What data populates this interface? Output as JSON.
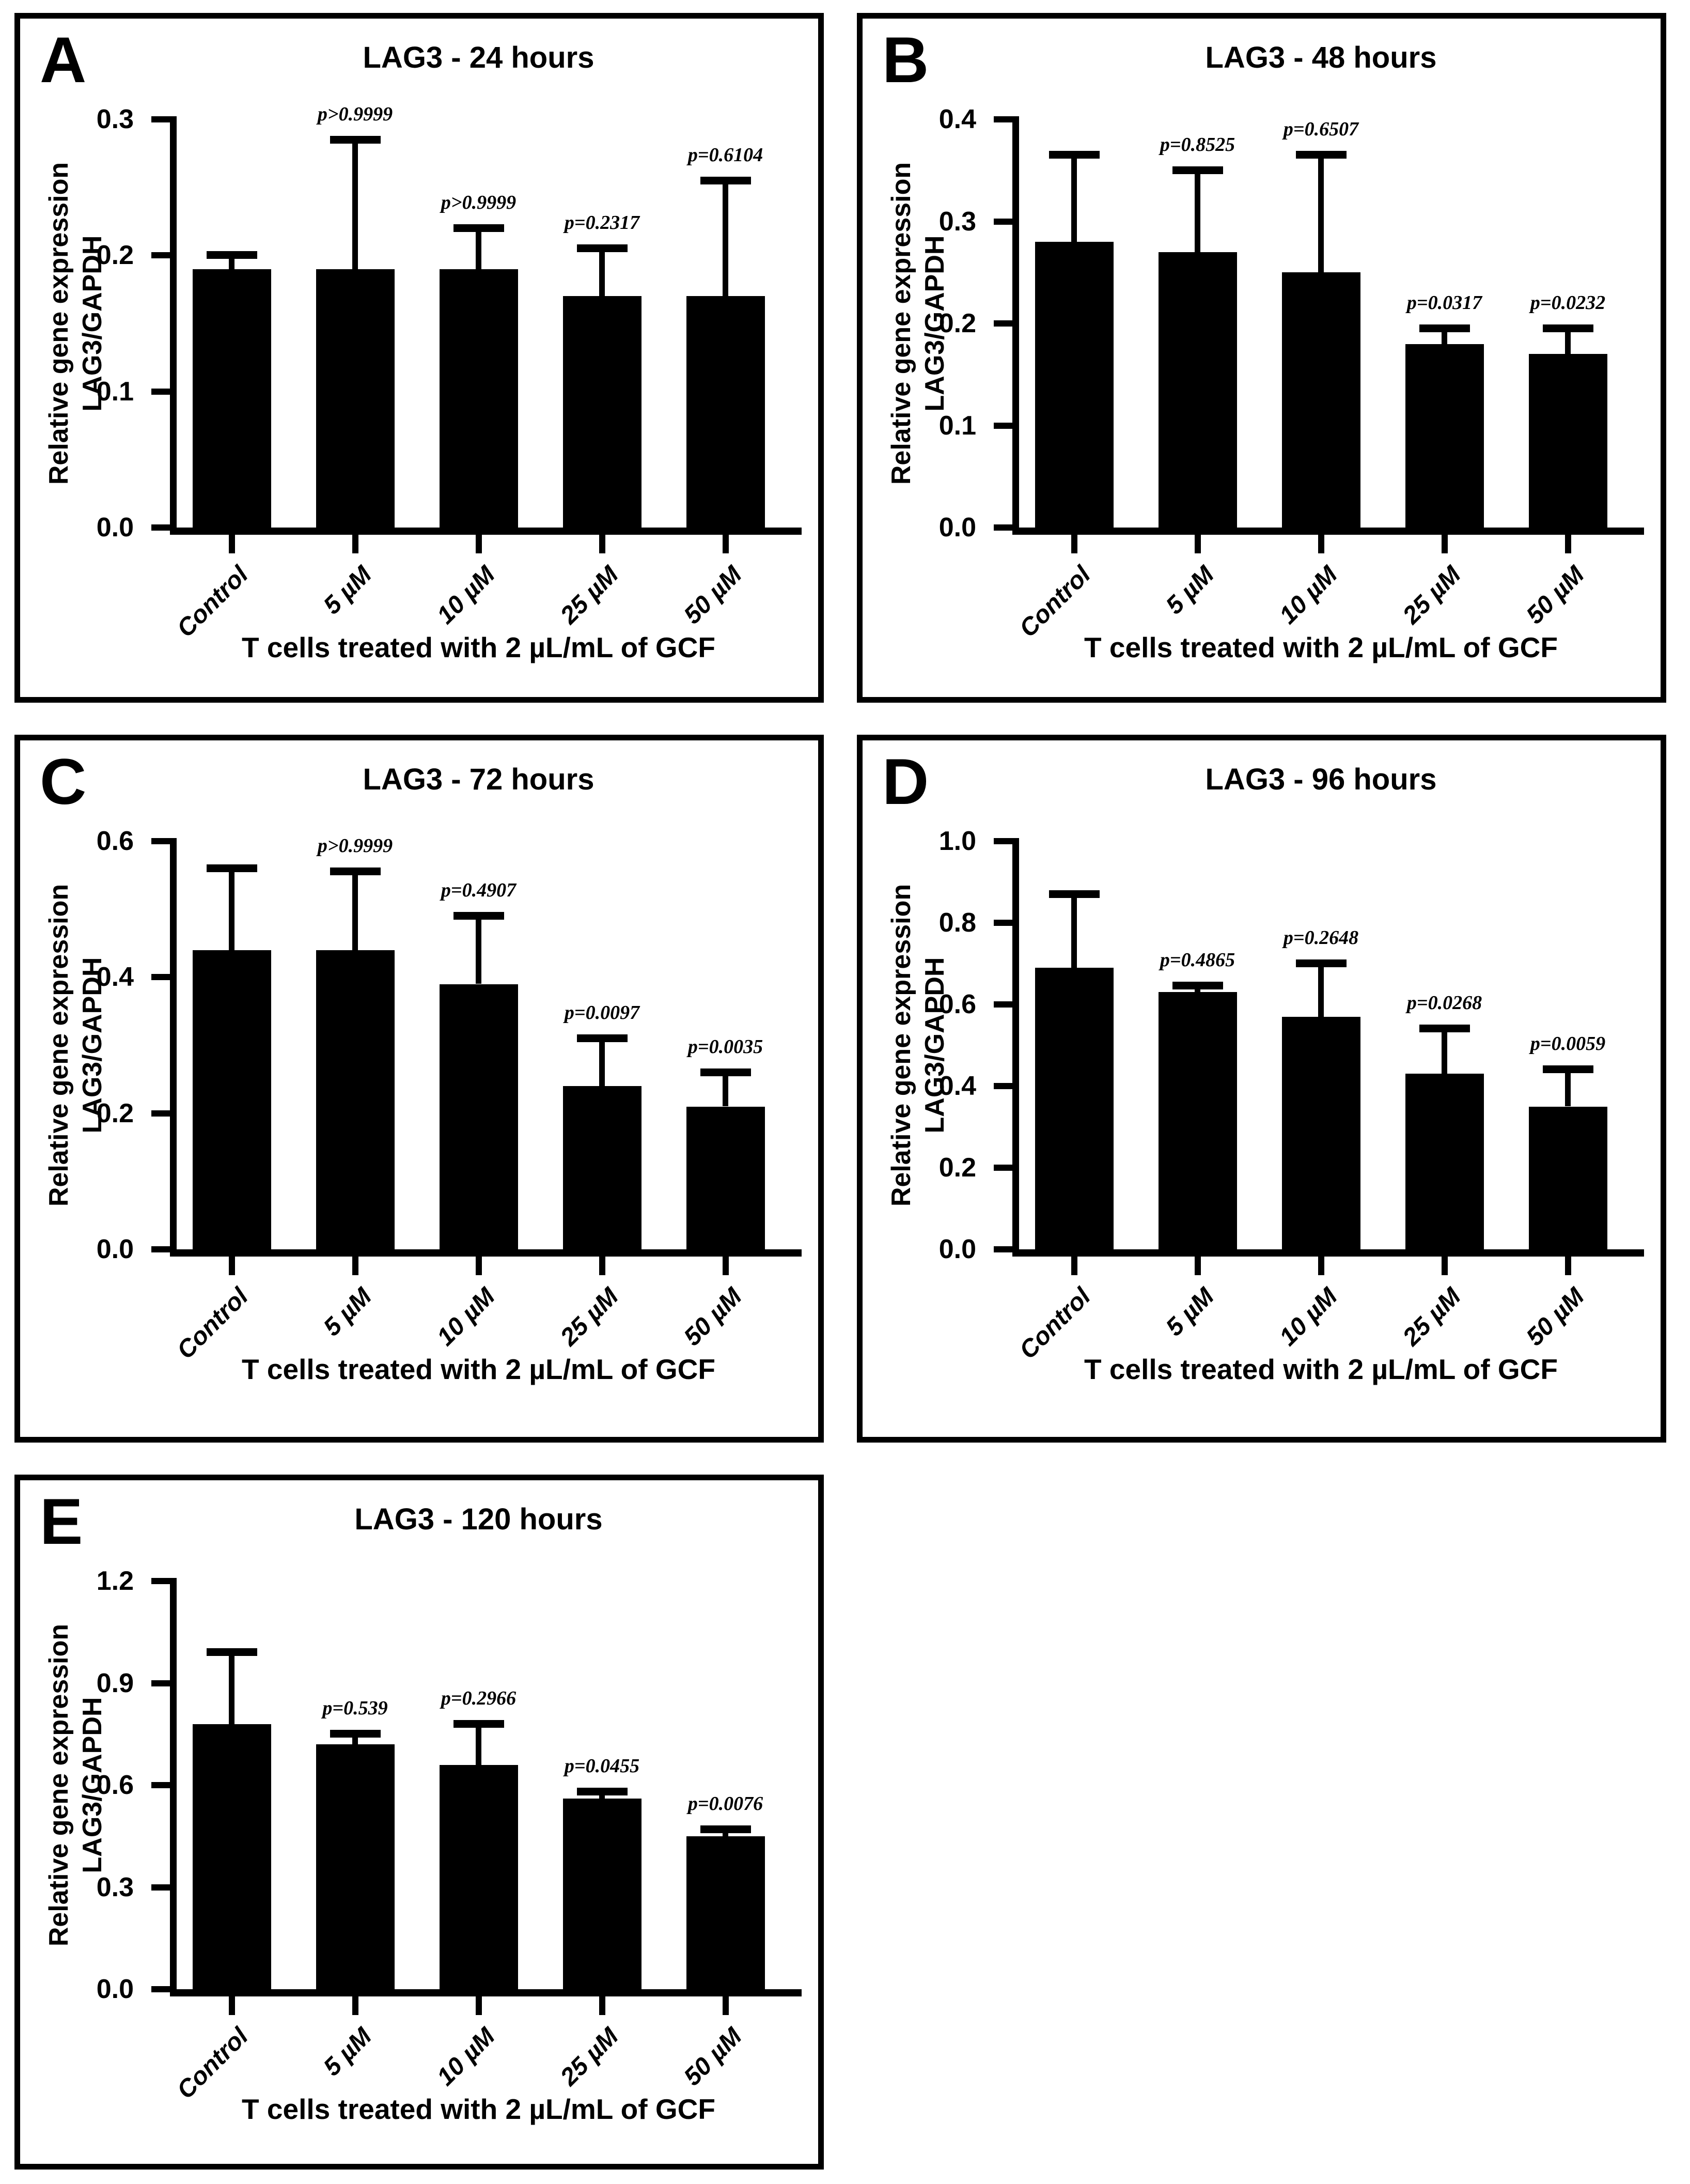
{
  "figure": {
    "background_color": "#ffffff",
    "bar_color": "#000000",
    "axis_color": "#000000",
    "ylabel_line1": "Relative gene expression",
    "ylabel_line2": "LAG3/GAPDH",
    "xlabel": "T cells treated with 2 µL/mL of GCF"
  },
  "chart_data": [
    {
      "type": "bar",
      "panel_letter": "A",
      "title": "LAG3 - 24 hours",
      "categories": [
        "Control",
        "5 µM",
        "10 µM",
        "25 µM",
        "50 µM"
      ],
      "values": [
        0.19,
        0.19,
        0.19,
        0.17,
        0.17
      ],
      "error_top": [
        0.2,
        0.285,
        0.22,
        0.205,
        0.255
      ],
      "p_values": [
        null,
        "p>0.9999",
        "p>0.9999",
        "p=0.2317",
        "p=0.6104"
      ],
      "ylabel": "Relative gene expression LAG3/GAPDH",
      "xlabel": "T cells treated with 2 µL/mL of GCF",
      "ylim": [
        0,
        0.3
      ],
      "ytick_step": 0.1,
      "grid": false,
      "legend": "none"
    },
    {
      "type": "bar",
      "panel_letter": "B",
      "title": "LAG3 - 48 hours",
      "categories": [
        "Control",
        "5 µM",
        "10 µM",
        "25 µM",
        "50 µM"
      ],
      "values": [
        0.28,
        0.27,
        0.25,
        0.18,
        0.17
      ],
      "error_top": [
        0.365,
        0.35,
        0.365,
        0.195,
        0.195
      ],
      "p_values": [
        null,
        "p=0.8525",
        "p=0.6507",
        "p=0.0317",
        "p=0.0232"
      ],
      "ylabel": "Relative gene expression LAG3/GAPDH",
      "xlabel": "T cells treated with 2 µL/mL of GCF",
      "ylim": [
        0,
        0.4
      ],
      "ytick_step": 0.1,
      "grid": false,
      "legend": "none"
    },
    {
      "type": "bar",
      "panel_letter": "C",
      "title": "LAG3 - 72 hours",
      "categories": [
        "Control",
        "5 µM",
        "10 µM",
        "25 µM",
        "50 µM"
      ],
      "values": [
        0.44,
        0.44,
        0.39,
        0.24,
        0.21
      ],
      "error_top": [
        0.56,
        0.555,
        0.49,
        0.31,
        0.26
      ],
      "p_values": [
        null,
        "p>0.9999",
        "p=0.4907",
        "p=0.0097",
        "p=0.0035"
      ],
      "ylabel": "Relative gene expression LAG3/GAPDH",
      "xlabel": "T cells treated with 2 µL/mL of GCF",
      "ylim": [
        0,
        0.6
      ],
      "ytick_step": 0.2,
      "grid": false,
      "legend": "none"
    },
    {
      "type": "bar",
      "panel_letter": "D",
      "title": "LAG3 - 96 hours",
      "categories": [
        "Control",
        "5 µM",
        "10 µM",
        "25 µM",
        "50 µM"
      ],
      "values": [
        0.69,
        0.63,
        0.57,
        0.43,
        0.35
      ],
      "error_top": [
        0.87,
        0.645,
        0.7,
        0.54,
        0.44
      ],
      "p_values": [
        null,
        "p=0.4865",
        "p=0.2648",
        "p=0.0268",
        "p=0.0059"
      ],
      "ylabel": "Relative gene expression LAG3/GAPDH",
      "xlabel": "T cells treated with 2 µL/mL of GCF",
      "ylim": [
        0,
        1.0
      ],
      "ytick_step": 0.2,
      "grid": false,
      "legend": "none"
    },
    {
      "type": "bar",
      "panel_letter": "E",
      "title": "LAG3 - 120 hours",
      "categories": [
        "Control",
        "5 µM",
        "10 µM",
        "25 µM",
        "50 µM"
      ],
      "values": [
        0.78,
        0.72,
        0.66,
        0.56,
        0.45
      ],
      "error_top": [
        0.99,
        0.75,
        0.78,
        0.58,
        0.47
      ],
      "p_values": [
        null,
        "p=0.539",
        "p=0.2966",
        "p=0.0455",
        "p=0.0076"
      ],
      "ylabel": "Relative gene expression LAG3/GAPDH",
      "xlabel": "T cells treated with 2 µL/mL of GCF",
      "ylim": [
        0,
        1.2
      ],
      "ytick_step": 0.3,
      "grid": false,
      "legend": "none"
    }
  ]
}
